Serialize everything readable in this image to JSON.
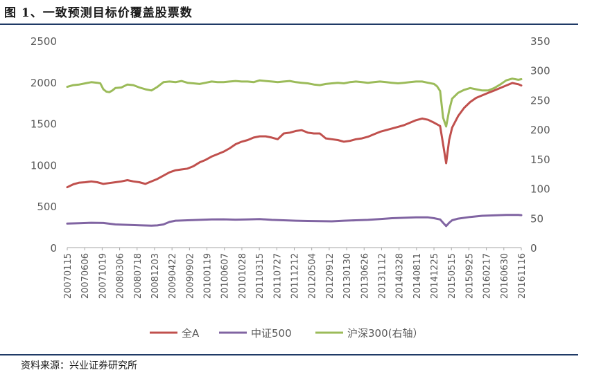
{
  "figure": {
    "title": "图 1、一致预测目标价覆盖股票数",
    "source": "资料来源：兴业证券研究所"
  },
  "chart_data": {
    "type": "line",
    "title": "",
    "x_tick_labels": [
      "20070115",
      "20070606",
      "20071019",
      "20080306",
      "20080718",
      "20081203",
      "20090422",
      "20090902",
      "20100119",
      "20100607",
      "20101028",
      "20110315",
      "20110727",
      "20111212",
      "20120504",
      "20120912",
      "20130130",
      "20130626",
      "20131112",
      "20140328",
      "20140811",
      "20141225",
      "20150515",
      "20150925",
      "20160217",
      "20160630",
      "20161116"
    ],
    "y_left": {
      "ylim": [
        0,
        2500
      ],
      "ticks": [
        0,
        500,
        1000,
        1500,
        2000,
        2500
      ]
    },
    "y_right": {
      "ylim": [
        0,
        350
      ],
      "ticks": [
        0,
        50,
        100,
        150,
        200,
        250,
        300,
        350
      ]
    },
    "legend_position": "bottom",
    "grid": false,
    "series": [
      {
        "name": "全A",
        "color": "#c0504d",
        "axis": "left",
        "points": [
          [
            0,
            730
          ],
          [
            2,
            765
          ],
          [
            4,
            785
          ],
          [
            6,
            790
          ],
          [
            8,
            800
          ],
          [
            10,
            790
          ],
          [
            12,
            770
          ],
          [
            14,
            780
          ],
          [
            16,
            790
          ],
          [
            18,
            800
          ],
          [
            20,
            815
          ],
          [
            22,
            800
          ],
          [
            24,
            790
          ],
          [
            26,
            770
          ],
          [
            28,
            800
          ],
          [
            30,
            830
          ],
          [
            32,
            870
          ],
          [
            34,
            910
          ],
          [
            36,
            935
          ],
          [
            38,
            945
          ],
          [
            40,
            955
          ],
          [
            42,
            985
          ],
          [
            44,
            1030
          ],
          [
            46,
            1060
          ],
          [
            48,
            1100
          ],
          [
            50,
            1130
          ],
          [
            52,
            1160
          ],
          [
            54,
            1200
          ],
          [
            56,
            1250
          ],
          [
            58,
            1280
          ],
          [
            60,
            1300
          ],
          [
            62,
            1330
          ],
          [
            64,
            1345
          ],
          [
            66,
            1345
          ],
          [
            68,
            1330
          ],
          [
            70,
            1310
          ],
          [
            72,
            1380
          ],
          [
            74,
            1390
          ],
          [
            76,
            1410
          ],
          [
            78,
            1420
          ],
          [
            80,
            1390
          ],
          [
            82,
            1380
          ],
          [
            84,
            1380
          ],
          [
            86,
            1320
          ],
          [
            88,
            1310
          ],
          [
            90,
            1300
          ],
          [
            92,
            1280
          ],
          [
            94,
            1290
          ],
          [
            96,
            1310
          ],
          [
            98,
            1320
          ],
          [
            100,
            1340
          ],
          [
            102,
            1370
          ],
          [
            104,
            1400
          ],
          [
            106,
            1420
          ],
          [
            108,
            1440
          ],
          [
            110,
            1460
          ],
          [
            112,
            1480
          ],
          [
            114,
            1510
          ],
          [
            116,
            1540
          ],
          [
            118,
            1560
          ],
          [
            120,
            1545
          ],
          [
            122,
            1510
          ],
          [
            124,
            1470
          ],
          [
            125,
            1250
          ],
          [
            126,
            1020
          ],
          [
            127,
            1300
          ],
          [
            128,
            1450
          ],
          [
            130,
            1590
          ],
          [
            132,
            1690
          ],
          [
            134,
            1760
          ],
          [
            136,
            1810
          ],
          [
            138,
            1840
          ],
          [
            140,
            1870
          ],
          [
            142,
            1900
          ],
          [
            144,
            1930
          ],
          [
            146,
            1960
          ],
          [
            148,
            1990
          ],
          [
            150,
            1975
          ],
          [
            151,
            1960
          ]
        ]
      },
      {
        "name": "中证500",
        "color": "#8064a2",
        "axis": "left",
        "points": [
          [
            0,
            290
          ],
          [
            4,
            295
          ],
          [
            8,
            300
          ],
          [
            12,
            298
          ],
          [
            16,
            280
          ],
          [
            20,
            275
          ],
          [
            24,
            270
          ],
          [
            28,
            265
          ],
          [
            30,
            268
          ],
          [
            32,
            280
          ],
          [
            34,
            310
          ],
          [
            36,
            325
          ],
          [
            40,
            330
          ],
          [
            44,
            335
          ],
          [
            48,
            340
          ],
          [
            52,
            342
          ],
          [
            56,
            338
          ],
          [
            60,
            340
          ],
          [
            64,
            345
          ],
          [
            68,
            335
          ],
          [
            72,
            330
          ],
          [
            76,
            325
          ],
          [
            80,
            322
          ],
          [
            84,
            320
          ],
          [
            88,
            318
          ],
          [
            92,
            325
          ],
          [
            96,
            330
          ],
          [
            100,
            335
          ],
          [
            104,
            345
          ],
          [
            108,
            355
          ],
          [
            112,
            360
          ],
          [
            116,
            365
          ],
          [
            120,
            365
          ],
          [
            122,
            355
          ],
          [
            124,
            340
          ],
          [
            125,
            300
          ],
          [
            126,
            260
          ],
          [
            127,
            300
          ],
          [
            128,
            330
          ],
          [
            130,
            350
          ],
          [
            134,
            370
          ],
          [
            138,
            385
          ],
          [
            142,
            390
          ],
          [
            146,
            395
          ],
          [
            150,
            395
          ],
          [
            151,
            392
          ]
        ]
      },
      {
        "name": "沪深300(右轴）",
        "color": "#9bbb59",
        "axis": "right",
        "points": [
          [
            0,
            272
          ],
          [
            2,
            275
          ],
          [
            4,
            276
          ],
          [
            6,
            278
          ],
          [
            8,
            280
          ],
          [
            10,
            279
          ],
          [
            11,
            278
          ],
          [
            12,
            268
          ],
          [
            13,
            264
          ],
          [
            14,
            263
          ],
          [
            15,
            266
          ],
          [
            16,
            270
          ],
          [
            18,
            271
          ],
          [
            20,
            276
          ],
          [
            22,
            275
          ],
          [
            24,
            271
          ],
          [
            26,
            268
          ],
          [
            28,
            266
          ],
          [
            30,
            272
          ],
          [
            32,
            280
          ],
          [
            34,
            281
          ],
          [
            36,
            280
          ],
          [
            38,
            282
          ],
          [
            40,
            279
          ],
          [
            42,
            278
          ],
          [
            44,
            277
          ],
          [
            46,
            279
          ],
          [
            48,
            281
          ],
          [
            50,
            280
          ],
          [
            52,
            280
          ],
          [
            54,
            281
          ],
          [
            56,
            282
          ],
          [
            58,
            281
          ],
          [
            60,
            281
          ],
          [
            62,
            280
          ],
          [
            64,
            283
          ],
          [
            66,
            282
          ],
          [
            68,
            281
          ],
          [
            70,
            280
          ],
          [
            72,
            281
          ],
          [
            74,
            282
          ],
          [
            76,
            280
          ],
          [
            78,
            279
          ],
          [
            80,
            278
          ],
          [
            82,
            276
          ],
          [
            84,
            275
          ],
          [
            86,
            277
          ],
          [
            88,
            278
          ],
          [
            90,
            279
          ],
          [
            92,
            278
          ],
          [
            94,
            280
          ],
          [
            96,
            281
          ],
          [
            98,
            280
          ],
          [
            100,
            279
          ],
          [
            102,
            280
          ],
          [
            104,
            281
          ],
          [
            106,
            280
          ],
          [
            108,
            279
          ],
          [
            110,
            278
          ],
          [
            112,
            279
          ],
          [
            114,
            280
          ],
          [
            116,
            281
          ],
          [
            118,
            281
          ],
          [
            120,
            279
          ],
          [
            122,
            277
          ],
          [
            123,
            273
          ],
          [
            124,
            265
          ],
          [
            125,
            220
          ],
          [
            126,
            205
          ],
          [
            127,
            232
          ],
          [
            128,
            252
          ],
          [
            130,
            262
          ],
          [
            132,
            267
          ],
          [
            134,
            270
          ],
          [
            136,
            268
          ],
          [
            138,
            266
          ],
          [
            140,
            266
          ],
          [
            142,
            270
          ],
          [
            144,
            276
          ],
          [
            146,
            283
          ],
          [
            148,
            286
          ],
          [
            150,
            284
          ],
          [
            151,
            285
          ]
        ]
      }
    ]
  }
}
